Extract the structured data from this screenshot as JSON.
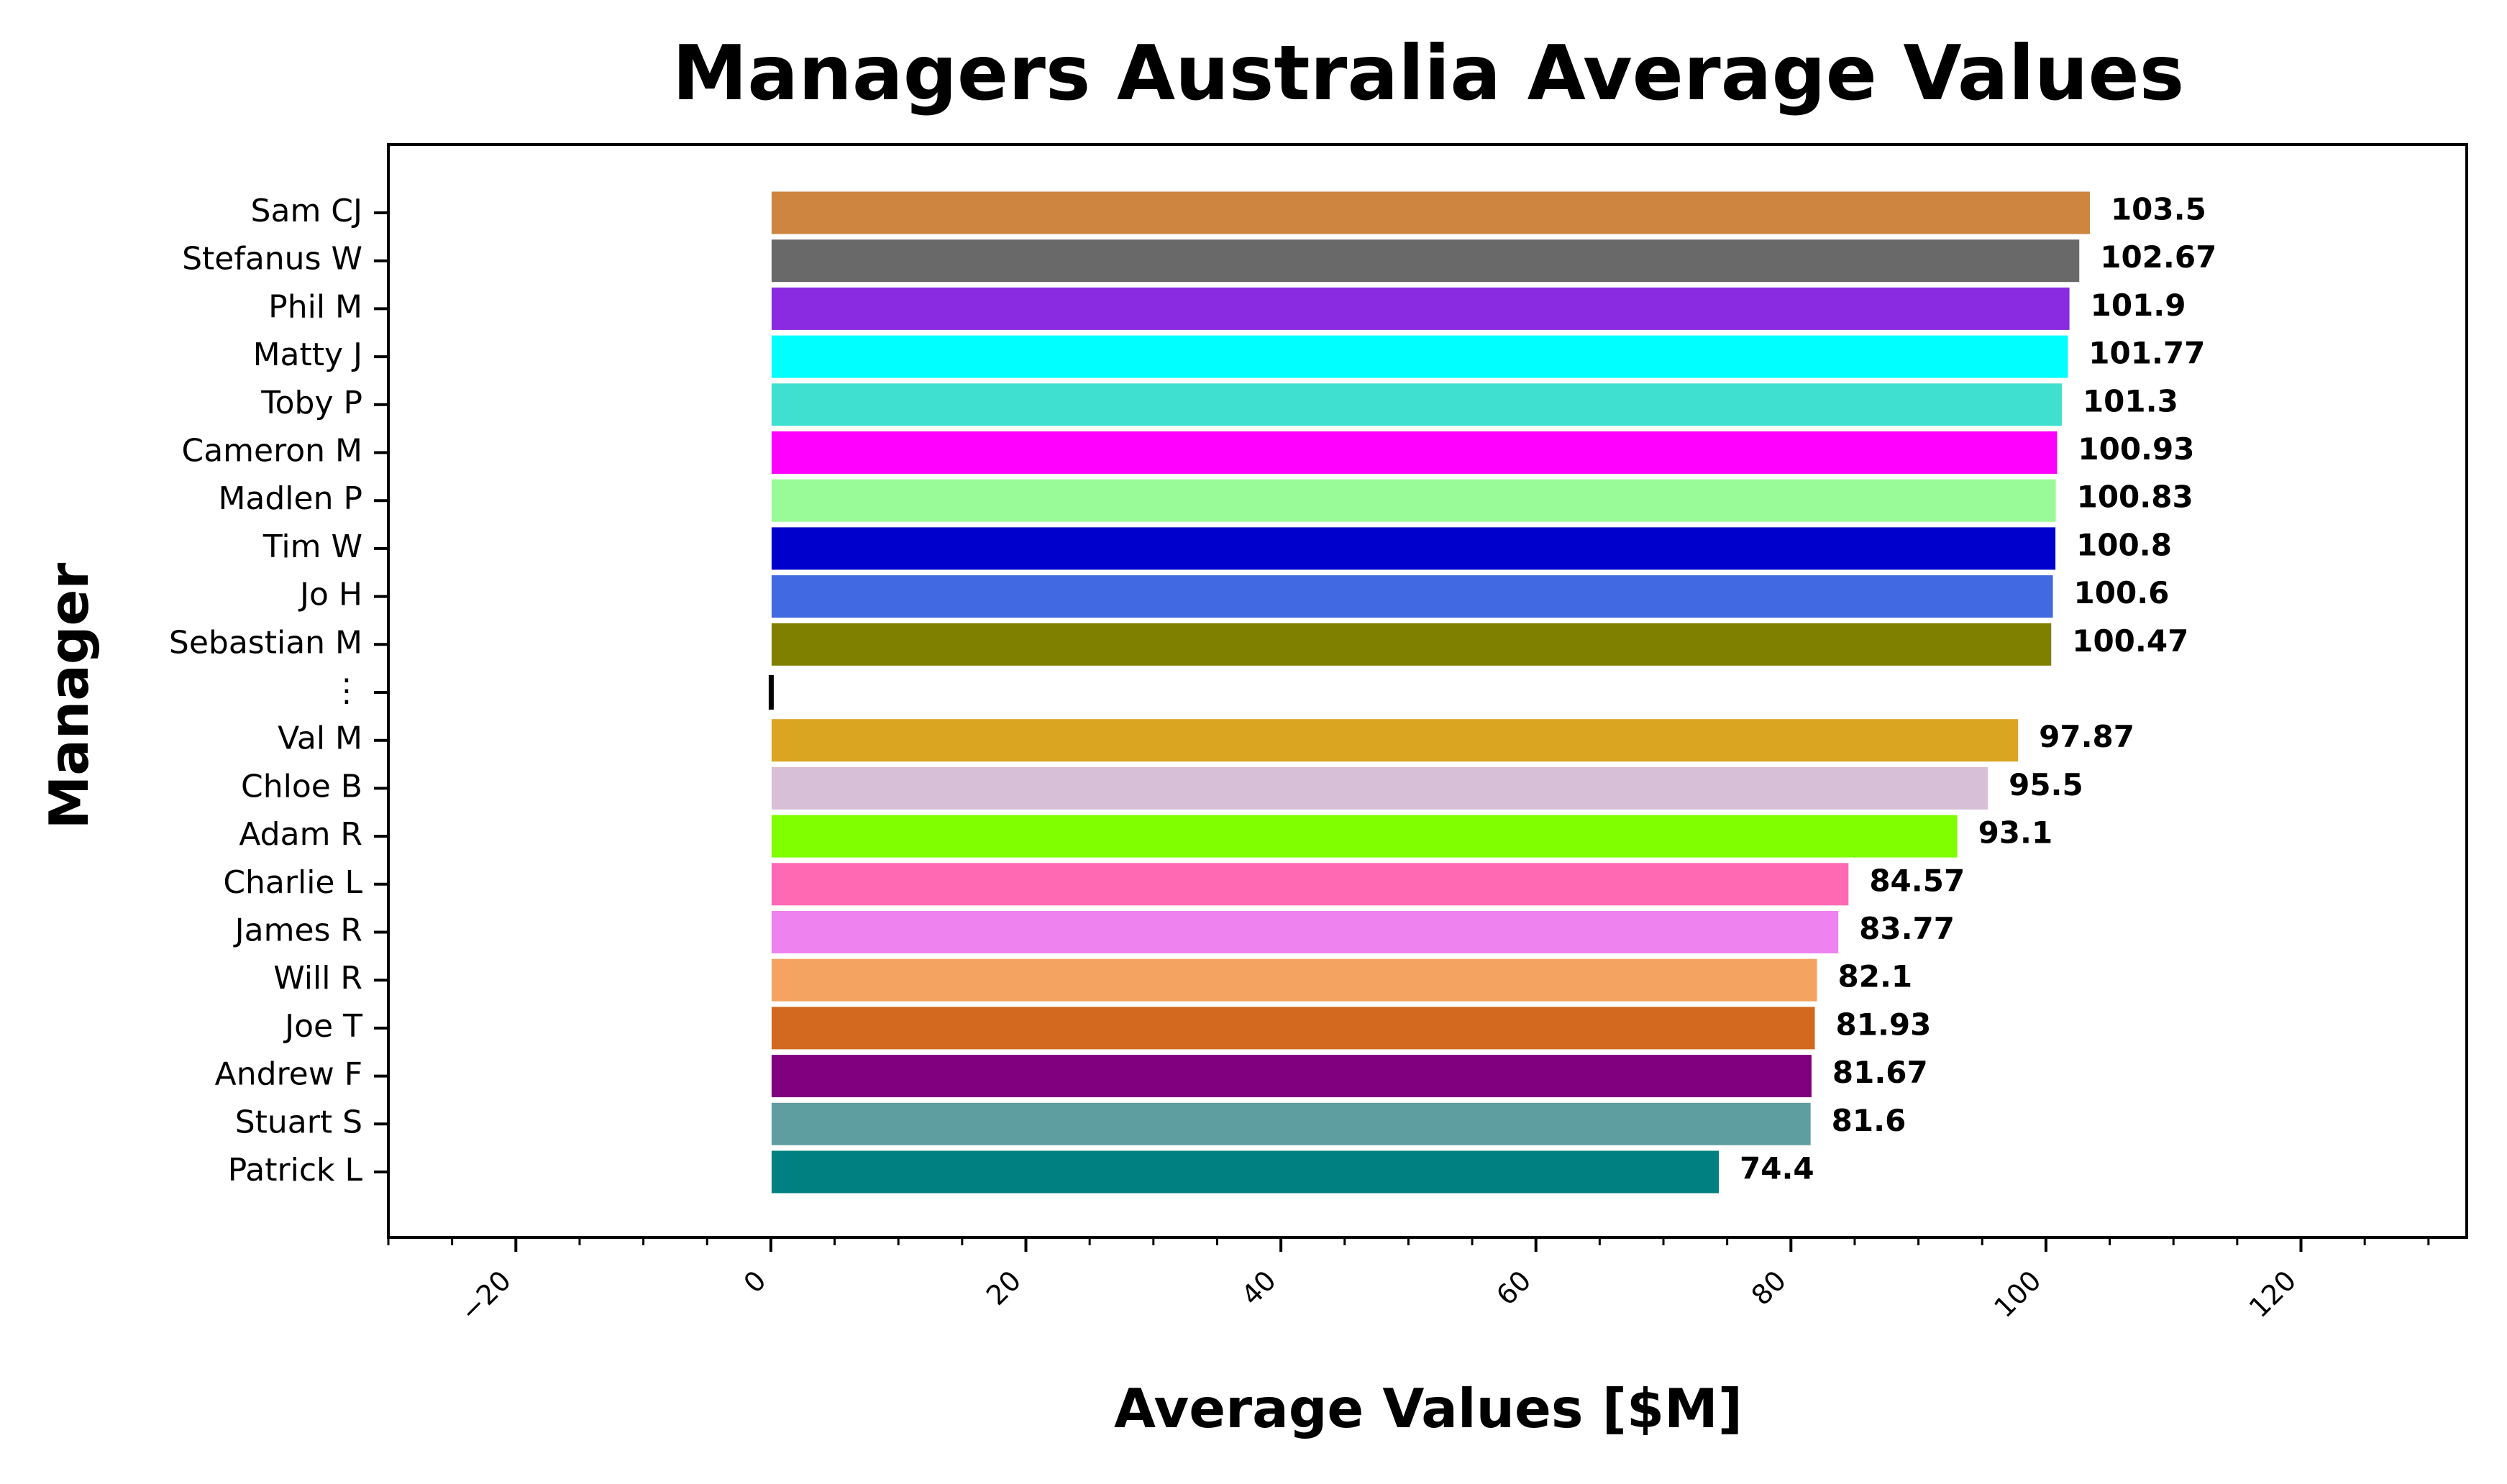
{
  "chart_data": {
    "type": "bar",
    "orientation": "horizontal",
    "title": "Managers Australia Average Values",
    "xlabel": "Average Values [$M]",
    "ylabel": "Manager",
    "xlim": [
      -30,
      133
    ],
    "xticks": [
      -20,
      0,
      20,
      40,
      60,
      80,
      100,
      120
    ],
    "xtick_labels": [
      "−20",
      "0",
      "20",
      "40",
      "60",
      "80",
      "100",
      "120"
    ],
    "grid": false,
    "legend": "none",
    "categories": [
      "Sam CJ",
      "Stefanus W",
      "Phil M",
      "Matty J",
      "Toby P",
      "Cameron M",
      "Madlen P",
      "Tim W",
      "Jo H",
      "Sebastian M",
      "⋮",
      "Val M",
      "Chloe B",
      "Adam R",
      "Charlie L",
      "James R",
      "Will R",
      "Joe T",
      "Andrew F",
      "Stuart S",
      "Patrick L"
    ],
    "values": [
      103.5,
      102.67,
      101.9,
      101.77,
      101.3,
      100.93,
      100.83,
      100.8,
      100.6,
      100.47,
      null,
      97.87,
      95.5,
      93.1,
      84.57,
      83.77,
      82.1,
      81.93,
      81.67,
      81.6,
      74.4
    ],
    "value_labels": [
      "103.5",
      "102.67",
      "101.9",
      "101.77",
      "101.3",
      "100.93",
      "100.83",
      "100.8",
      "100.6",
      "100.47",
      "",
      "97.87",
      "95.5",
      "93.1",
      "84.57",
      "83.77",
      "82.1",
      "81.93",
      "81.67",
      "81.6",
      "74.4"
    ],
    "colors": [
      "#cd853f",
      "#696969",
      "#8a2be2",
      "#00ffff",
      "#40e0d0",
      "#ff00ff",
      "#98fb98",
      "#0000cd",
      "#4169e1",
      "#808000",
      "#000000",
      "#daa520",
      "#d8bfd8",
      "#7fff00",
      "#ff69b4",
      "#ee82ee",
      "#f4a460",
      "#d2691e",
      "#800080",
      "#5f9ea0",
      "#008080"
    ]
  }
}
